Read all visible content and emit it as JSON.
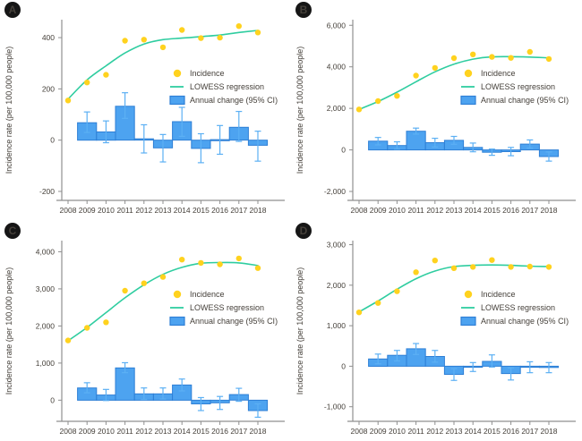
{
  "figure": {
    "ylabel": "Incidence rate (per 100,000 people)",
    "legend": [
      "Incidence",
      "LOWESS regression",
      "Annual change (95% CI)"
    ],
    "colors": {
      "incidence_dot": "#FFD21E",
      "lowess_line": "#2FCDA0",
      "bar_fill": "#4DA3F0",
      "bar_border": "#2E7FD6",
      "error_bar": "#5CB0F4",
      "axis": "#8f8f8f",
      "tick_text": "#45403a",
      "badge_bg": "#161616",
      "badge_text": "#ffffff"
    }
  },
  "chart_data": [
    {
      "id": "A",
      "type": "scatter",
      "title": "",
      "xlabel": "",
      "ylabel": "Incidence rate (per 100,000 people)",
      "x": [
        2008,
        2009,
        2010,
        2011,
        2012,
        2013,
        2014,
        2015,
        2016,
        2017,
        2018
      ],
      "xtick_labels": [
        "2008",
        "2009",
        "2010",
        "2011",
        "2012",
        "2013",
        "2014",
        "2015",
        "2016",
        "2017",
        "2018"
      ],
      "yticks": [
        -200,
        0,
        200,
        400
      ],
      "ytick_labels": [
        "-200",
        "0",
        "200",
        "400"
      ],
      "ylim": [
        -235,
        470
      ],
      "legend": [
        "Incidence",
        "LOWESS regression",
        "Annual change (95% CI)"
      ],
      "series": [
        {
          "name": "Incidence",
          "type": "scatter",
          "values": [
            155,
            225,
            255,
            388,
            392,
            362,
            430,
            398,
            400,
            445,
            420
          ]
        },
        {
          "name": "LOWESS regression",
          "type": "line",
          "values": [
            160,
            235,
            290,
            340,
            375,
            392,
            398,
            404,
            410,
            420,
            428
          ]
        },
        {
          "name": "Annual change (95% CI)",
          "type": "bar",
          "x": [
            2009,
            2010,
            2011,
            2012,
            2013,
            2014,
            2015,
            2016,
            2017,
            2018
          ],
          "values": [
            68,
            32,
            132,
            5,
            -30,
            72,
            -32,
            2,
            50,
            -20
          ],
          "ci_low": [
            30,
            -10,
            85,
            -50,
            -85,
            15,
            -88,
            -55,
            -5,
            -82
          ],
          "ci_high": [
            110,
            75,
            185,
            60,
            22,
            128,
            25,
            57,
            112,
            35
          ]
        }
      ]
    },
    {
      "id": "B",
      "type": "scatter",
      "title": "",
      "xlabel": "",
      "ylabel": "Incidence rate (per 100,000 people)",
      "x": [
        2008,
        2009,
        2010,
        2011,
        2012,
        2013,
        2014,
        2015,
        2016,
        2017,
        2018
      ],
      "xtick_labels": [
        "2008",
        "2009",
        "2010",
        "2011",
        "2012",
        "2013",
        "2014",
        "2015",
        "2016",
        "2017",
        "2018"
      ],
      "yticks": [
        -2000,
        0,
        2000,
        4000,
        6000
      ],
      "ytick_labels": [
        "-2,000",
        "0",
        "2,000",
        "4,000",
        "6,000"
      ],
      "ylim": [
        -2430,
        6270
      ],
      "legend": [
        "Incidence",
        "LOWESS regression",
        "Annual change (95% CI)"
      ],
      "series": [
        {
          "name": "Incidence",
          "type": "scatter",
          "values": [
            1950,
            2350,
            2600,
            3580,
            3950,
            4420,
            4600,
            4480,
            4430,
            4720,
            4380
          ]
        },
        {
          "name": "LOWESS regression",
          "type": "line",
          "values": [
            1950,
            2330,
            2780,
            3280,
            3760,
            4130,
            4370,
            4480,
            4490,
            4470,
            4430
          ]
        },
        {
          "name": "Annual change (95% CI)",
          "type": "bar",
          "x": [
            2009,
            2010,
            2011,
            2012,
            2013,
            2014,
            2015,
            2016,
            2017,
            2018
          ],
          "values": [
            420,
            210,
            900,
            350,
            460,
            120,
            -110,
            -80,
            280,
            -320
          ],
          "ci_low": [
            240,
            40,
            760,
            140,
            270,
            -90,
            -260,
            -280,
            90,
            -540
          ],
          "ci_high": [
            600,
            390,
            1050,
            560,
            650,
            330,
            40,
            120,
            480,
            -100
          ]
        }
      ]
    },
    {
      "id": "C",
      "type": "scatter",
      "title": "",
      "xlabel": "",
      "ylabel": "Incidence rate (per 100,000 people)",
      "x": [
        2008,
        2009,
        2010,
        2011,
        2012,
        2013,
        2014,
        2015,
        2016,
        2017,
        2018
      ],
      "xtick_labels": [
        "2008",
        "2009",
        "2010",
        "2011",
        "2012",
        "2013",
        "2014",
        "2015",
        "2016",
        "2017",
        "2018"
      ],
      "yticks": [
        0,
        1000,
        2000,
        3000,
        4000
      ],
      "ytick_labels": [
        "0",
        "1,000",
        "2,000",
        "3,000",
        "4,000"
      ],
      "ylim": [
        -570,
        4300
      ],
      "legend": [
        "Incidence",
        "LOWESS regression",
        "Annual change (95% CI)"
      ],
      "series": [
        {
          "name": "Incidence",
          "type": "scatter",
          "values": [
            1610,
            1950,
            2100,
            2950,
            3150,
            3320,
            3790,
            3700,
            3660,
            3820,
            3560
          ]
        },
        {
          "name": "LOWESS regression",
          "type": "line",
          "values": [
            1600,
            1960,
            2360,
            2760,
            3110,
            3390,
            3580,
            3690,
            3710,
            3700,
            3630
          ]
        },
        {
          "name": "Annual change (95% CI)",
          "type": "bar",
          "x": [
            2009,
            2010,
            2011,
            2012,
            2013,
            2014,
            2015,
            2016,
            2017,
            2018
          ],
          "values": [
            330,
            140,
            870,
            170,
            170,
            410,
            -100,
            -70,
            150,
            -280
          ],
          "ci_low": [
            200,
            -10,
            740,
            20,
            30,
            250,
            -280,
            -250,
            -30,
            -460
          ],
          "ci_high": [
            470,
            290,
            1010,
            330,
            330,
            570,
            70,
            100,
            320,
            -100
          ]
        }
      ]
    },
    {
      "id": "D",
      "type": "scatter",
      "title": "",
      "xlabel": "",
      "ylabel": "Incidence rate (per 100,000 people)",
      "x": [
        2008,
        2009,
        2010,
        2011,
        2012,
        2013,
        2014,
        2015,
        2016,
        2017,
        2018
      ],
      "xtick_labels": [
        "2008",
        "2009",
        "2010",
        "2011",
        "2012",
        "2013",
        "2014",
        "2015",
        "2016",
        "2017",
        "2018"
      ],
      "yticks": [
        -1000,
        0,
        1000,
        2000,
        3000
      ],
      "ytick_labels": [
        "-1,000",
        "0",
        "1,000",
        "2,000",
        "3,000"
      ],
      "ylim": [
        -1360,
        3100
      ],
      "legend": [
        "Incidence",
        "LOWESS regression",
        "Annual change (95% CI)"
      ],
      "series": [
        {
          "name": "Incidence",
          "type": "scatter",
          "values": [
            1330,
            1560,
            1850,
            2320,
            2610,
            2420,
            2450,
            2620,
            2450,
            2460,
            2450
          ]
        },
        {
          "name": "LOWESS regression",
          "type": "line",
          "values": [
            1340,
            1610,
            1900,
            2160,
            2350,
            2460,
            2490,
            2500,
            2490,
            2470,
            2460
          ]
        },
        {
          "name": "Annual change (95% CI)",
          "type": "bar",
          "x": [
            2009,
            2010,
            2011,
            2012,
            2013,
            2014,
            2015,
            2016,
            2017,
            2018
          ],
          "values": [
            180,
            270,
            430,
            240,
            -200,
            -20,
            120,
            -180,
            -20,
            -30
          ],
          "ci_low": [
            60,
            130,
            290,
            100,
            -350,
            -130,
            -20,
            -340,
            -160,
            -160
          ],
          "ci_high": [
            300,
            390,
            560,
            390,
            -60,
            90,
            280,
            -40,
            110,
            90
          ]
        }
      ]
    }
  ]
}
